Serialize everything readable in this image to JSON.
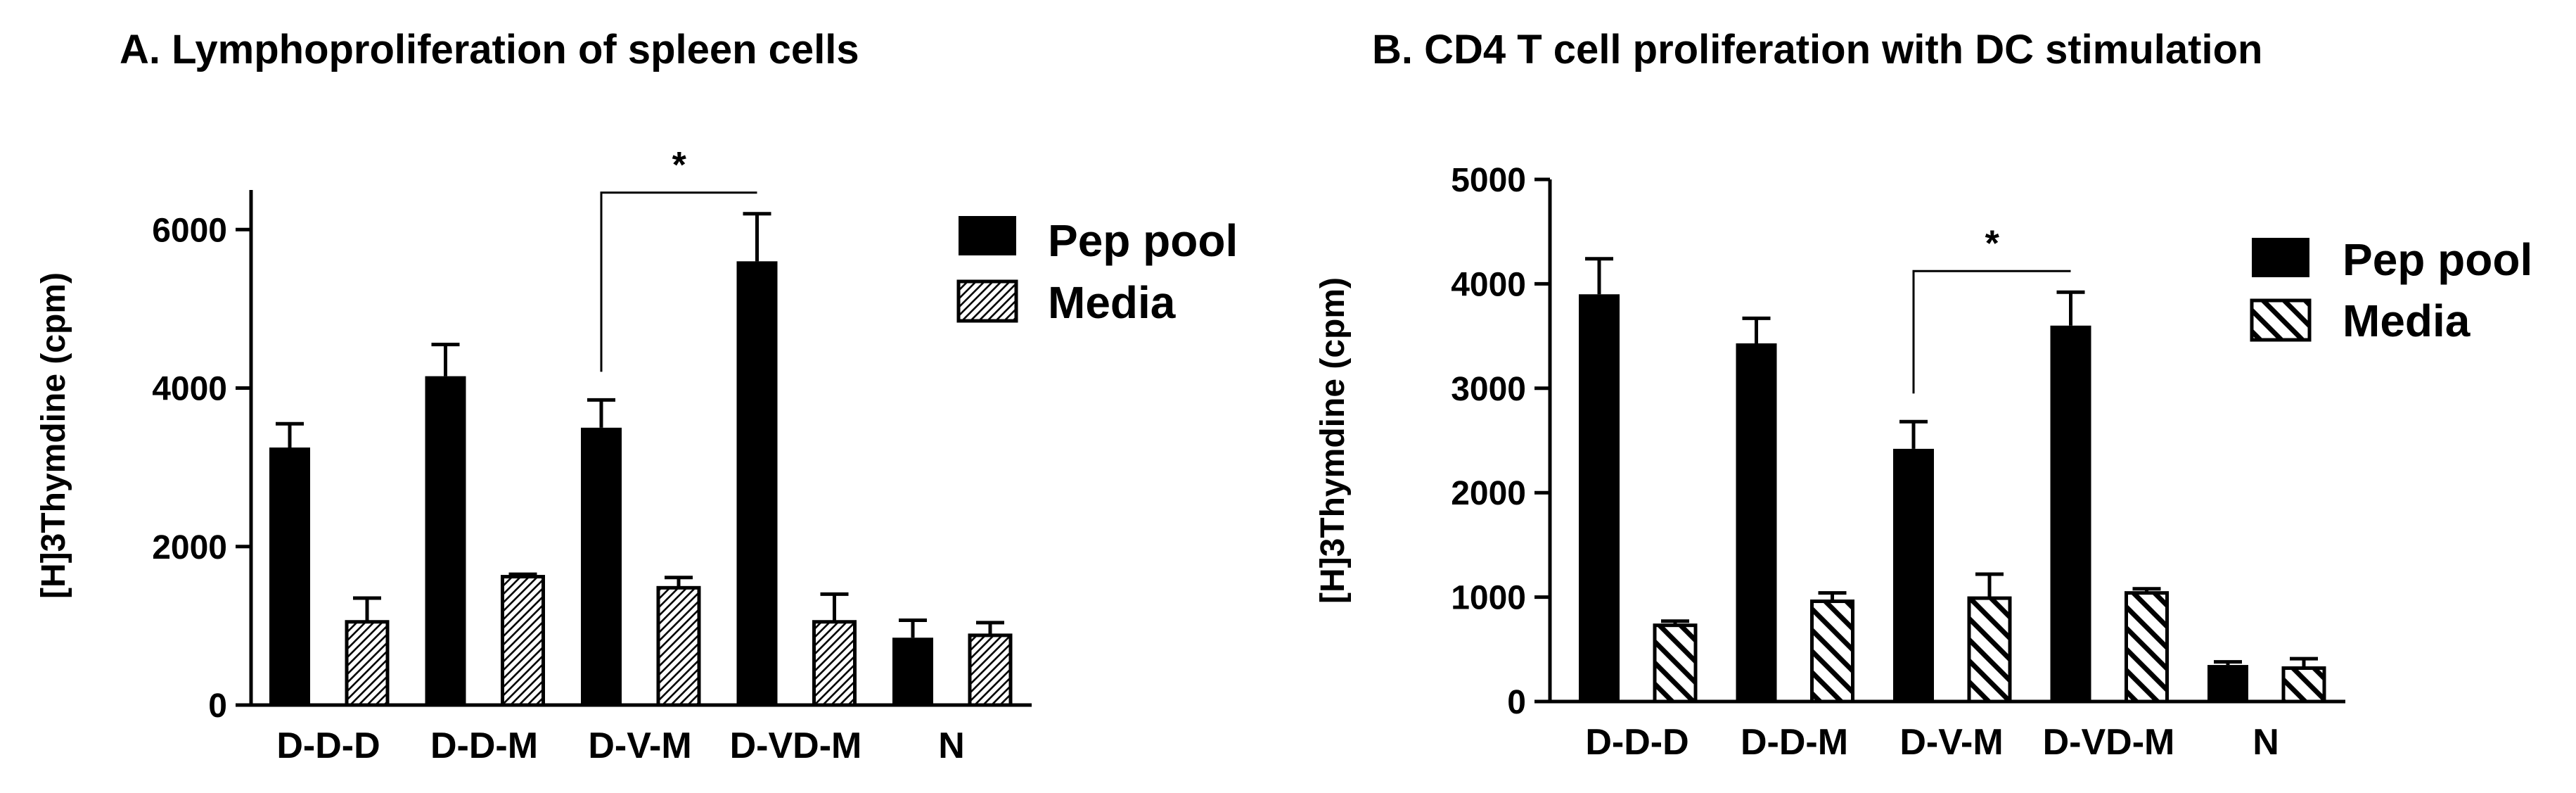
{
  "chart_data": [
    {
      "type": "bar",
      "title": "A. Lymphoproliferation of spleen cells",
      "xlabel": "",
      "ylabel": "[H]3Thymdine (cpm)",
      "categories": [
        "D-D-D",
        "D-D-M",
        "D-V-M",
        "D-VD-M",
        "N"
      ],
      "ylim": [
        0,
        6500
      ],
      "yticks": [
        0,
        2000,
        4000,
        6000
      ],
      "series": [
        {
          "name": "Pep pool",
          "values": [
            3250,
            4150,
            3500,
            5600,
            850
          ],
          "errors": [
            300,
            400,
            350,
            600,
            220
          ],
          "fill": "solid"
        },
        {
          "name": "Media",
          "values": [
            1050,
            1620,
            1480,
            1050,
            880
          ],
          "errors": [
            300,
            30,
            130,
            350,
            160
          ],
          "fill": "hatch-fine"
        }
      ],
      "significance": {
        "label": "*",
        "between": [
          "D-V-M",
          "D-VD-M"
        ],
        "series": "Pep pool"
      },
      "legend_position": "top-right",
      "grid": false
    },
    {
      "type": "bar",
      "title": "B. CD4 T cell proliferation with DC stimulation",
      "xlabel": "",
      "ylabel": "[H]3Thymdine (cpm)",
      "categories": [
        "D-D-D",
        "D-D-M",
        "D-V-M",
        "D-VD-M",
        "N"
      ],
      "ylim": [
        0,
        5000
      ],
      "yticks": [
        0,
        1000,
        2000,
        3000,
        4000,
        5000
      ],
      "series": [
        {
          "name": "Pep pool",
          "values": [
            3900,
            3430,
            2420,
            3600,
            350
          ],
          "errors": [
            340,
            240,
            260,
            320,
            30
          ],
          "fill": "solid"
        },
        {
          "name": "Media",
          "values": [
            730,
            960,
            990,
            1040,
            320
          ],
          "errors": [
            40,
            80,
            230,
            40,
            90
          ],
          "fill": "hatch-bold"
        }
      ],
      "significance": {
        "label": "*",
        "between": [
          "D-V-M",
          "D-VD-M"
        ],
        "series": "Pep pool"
      },
      "legend_position": "top-right",
      "grid": false
    }
  ]
}
